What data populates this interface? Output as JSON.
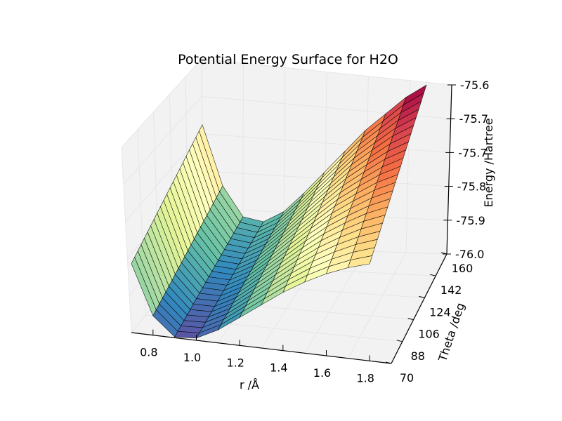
{
  "chart_data": {
    "type": "surface3d",
    "title": "Potential Energy Surface for H2O",
    "xlabel": "r /Å",
    "ylabel": "Theta /deg",
    "zlabel": "Energy /Hartree",
    "xlim": [
      0.7,
      1.9
    ],
    "ylim": [
      70,
      160
    ],
    "zlim": [
      -76.0,
      -75.6
    ],
    "x_ticks": [
      "0.8",
      "1.0",
      "1.2",
      "1.4",
      "1.6",
      "1.8"
    ],
    "y_ticks": [
      "70",
      "88",
      "106",
      "124",
      "142",
      "160"
    ],
    "z_ticks": [
      "-76.0",
      "-75.9",
      "-75.8",
      "-75.7",
      "-75.7",
      "-75.6"
    ],
    "colormap": "Spectral",
    "colors": {
      "pane_bg": "#f2f2f2",
      "grid": "#e6e6e6",
      "edge": "#000000"
    },
    "surface": {
      "r": [
        0.7,
        0.8,
        0.9,
        1.0,
        1.1,
        1.2,
        1.3,
        1.4,
        1.5,
        1.6,
        1.7,
        1.8
      ],
      "theta": [
        70,
        160
      ],
      "energy_theta_min": [
        -75.84,
        -75.955,
        -75.998,
        -75.995,
        -75.97,
        -75.935,
        -75.9,
        -75.865,
        -75.835,
        -75.81,
        -75.79,
        -75.775
      ],
      "energy_theta_max": [
        -75.72,
        -75.86,
        -75.93,
        -75.94,
        -75.915,
        -75.87,
        -75.82,
        -75.77,
        -75.72,
        -75.68,
        -75.64,
        -75.61
      ]
    }
  }
}
